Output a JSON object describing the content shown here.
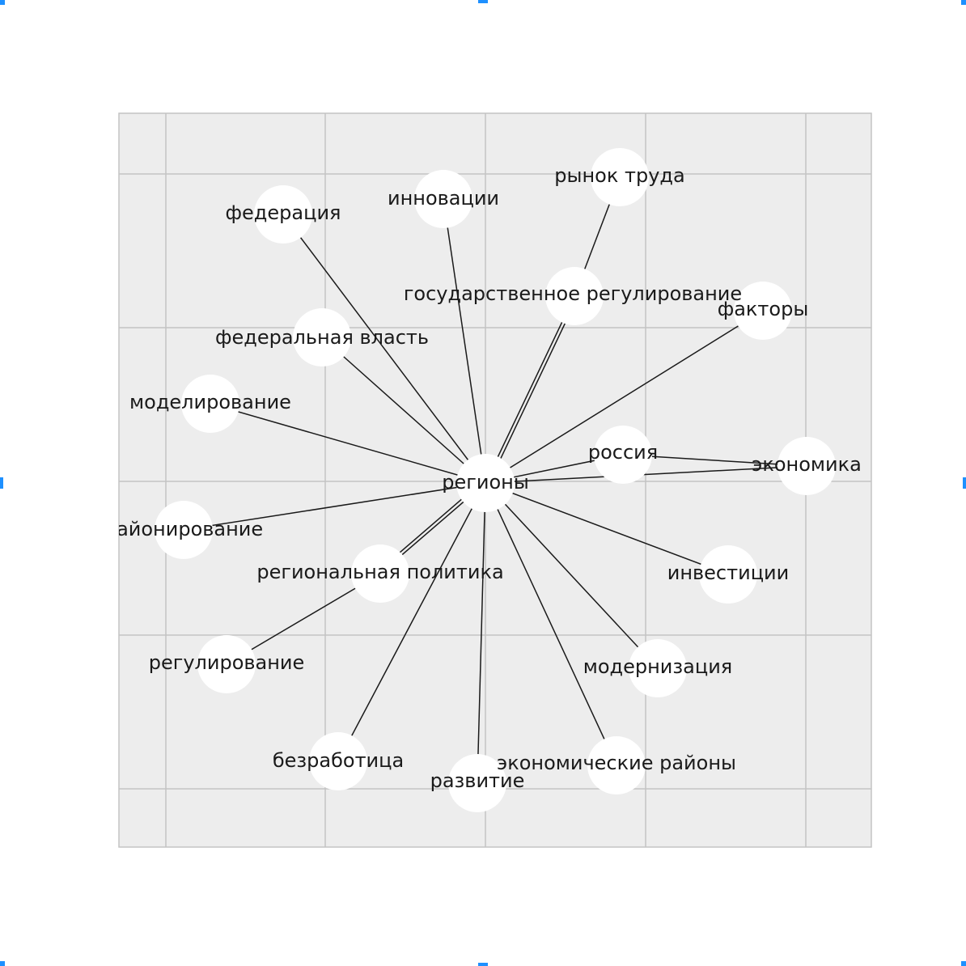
{
  "diagram": {
    "type": "network-graph",
    "center": "регионы",
    "background": "#ededed",
    "node_fill": "#ffffff",
    "edge_color": "#1a1a1a",
    "grid_color": "#c4c4c4",
    "handle_color": "#1e90ff",
    "nodes": [
      {
        "id": "regions",
        "label": "регионы"
      },
      {
        "id": "russia",
        "label": "россия"
      },
      {
        "id": "economy",
        "label": "экономика"
      },
      {
        "id": "factors",
        "label": "факторы"
      },
      {
        "id": "gov_reg",
        "label": "государственное регулирование"
      },
      {
        "id": "labor",
        "label": "рынок труда"
      },
      {
        "id": "innov",
        "label": "инновации"
      },
      {
        "id": "federation",
        "label": "федерация"
      },
      {
        "id": "fed_power",
        "label": "федеральная власть"
      },
      {
        "id": "modeling",
        "label": "моделирование"
      },
      {
        "id": "zoning",
        "label": "районирование"
      },
      {
        "id": "reg_policy",
        "label": "региональная политика"
      },
      {
        "id": "regulation",
        "label": "регулирование"
      },
      {
        "id": "unemployment",
        "label": "безработица"
      },
      {
        "id": "development",
        "label": "развитие"
      },
      {
        "id": "econ_regions",
        "label": "экономические районы"
      },
      {
        "id": "modernization",
        "label": "модернизация"
      },
      {
        "id": "investments",
        "label": "инвестиции"
      }
    ],
    "edges": [
      [
        "regions",
        "russia"
      ],
      [
        "regions",
        "economy"
      ],
      [
        "russia",
        "economy"
      ],
      [
        "regions",
        "factors"
      ],
      [
        "regions",
        "gov_reg"
      ],
      [
        "regions",
        "gov_reg"
      ],
      [
        "gov_reg",
        "labor"
      ],
      [
        "regions",
        "innov"
      ],
      [
        "regions",
        "federation"
      ],
      [
        "regions",
        "fed_power"
      ],
      [
        "regions",
        "modeling"
      ],
      [
        "regions",
        "zoning"
      ],
      [
        "regions",
        "reg_policy"
      ],
      [
        "regions",
        "reg_policy"
      ],
      [
        "reg_policy",
        "regulation"
      ],
      [
        "regions",
        "unemployment"
      ],
      [
        "regions",
        "development"
      ],
      [
        "regions",
        "econ_regions"
      ],
      [
        "regions",
        "modernization"
      ],
      [
        "regions",
        "investments"
      ]
    ]
  }
}
